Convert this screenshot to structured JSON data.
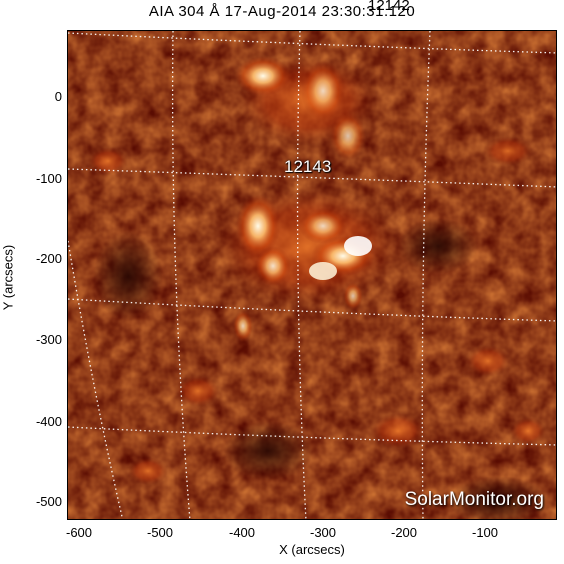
{
  "title": "AIA 304 Å 17-Aug-2014 23:30:31.120",
  "title_overlap_label": "12142",
  "active_regions": [
    "12143"
  ],
  "credit": "SolarMonitor.org",
  "axes": {
    "xlabel": "X (arcsecs)",
    "ylabel": "Y (arcsecs)",
    "xticks": [
      "-600",
      "-500",
      "-400",
      "-300",
      "-200",
      "-100"
    ],
    "yticks": [
      "0",
      "-100",
      "-200",
      "-300",
      "-400",
      "-500"
    ]
  },
  "colors": {
    "background": "#5a0c02",
    "bright": "#fff0c8",
    "grid": "#ffffff"
  }
}
